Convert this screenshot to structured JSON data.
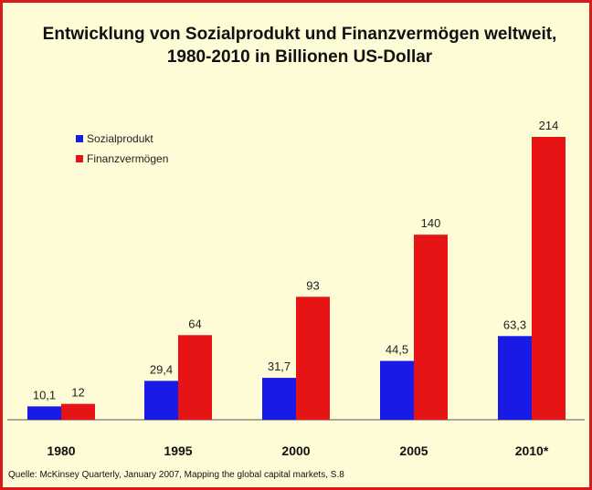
{
  "chart_data": {
    "type": "bar",
    "title_line1": "Entwicklung von Sozialprodukt und Finanzvermögen weltweit,",
    "title_line2": "1980-2010 in Billionen US-Dollar",
    "categories": [
      "1980",
      "1995",
      "2000",
      "2005",
      "2010*"
    ],
    "series": [
      {
        "name": "Sozialprodukt",
        "color": "#1a1ae6",
        "values": [
          10.1,
          29.4,
          31.7,
          44.5,
          63.3
        ],
        "labels": [
          "10,1",
          "29,4",
          "31,7",
          "44,5",
          "63,3"
        ]
      },
      {
        "name": "Finanzvermögen",
        "color": "#e61414",
        "values": [
          12,
          64,
          93,
          140,
          214
        ],
        "labels": [
          "12",
          "64",
          "93",
          "140",
          "214"
        ]
      }
    ],
    "ylim": [
      0,
      214
    ],
    "grid": false,
    "legend_position": "top-left",
    "source": "Quelle: McKinsey Quarterly, January 2007, Mapping the global capital markets, S.8"
  }
}
